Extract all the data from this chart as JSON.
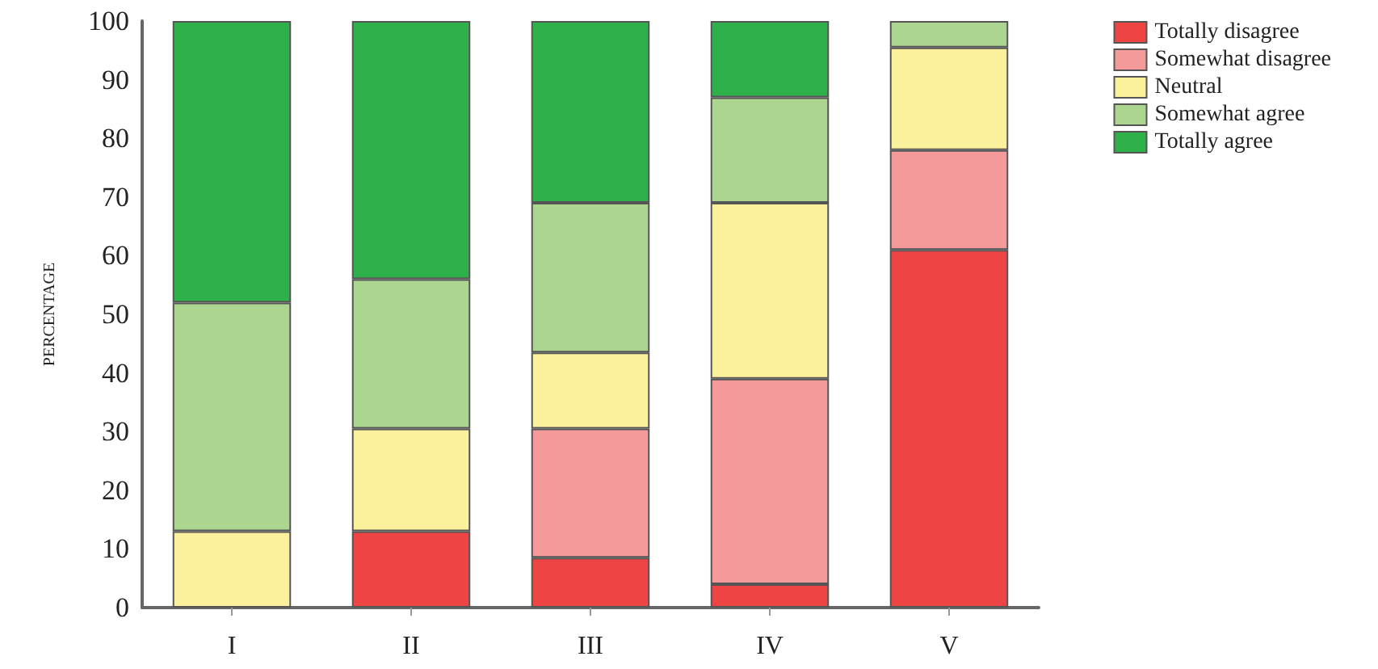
{
  "chart_data": {
    "type": "bar",
    "stacked": true,
    "ylabel": "PERCENTAGE",
    "categories": [
      "I",
      "II",
      "III",
      "IV",
      "V"
    ],
    "series": [
      {
        "name": "Totally disagree",
        "color": "#ef4444",
        "values": [
          null,
          13,
          8.5,
          4,
          61
        ]
      },
      {
        "name": "Somewhat disagree",
        "color": "#f49a9a",
        "values": [
          null,
          null,
          22,
          35,
          17
        ]
      },
      {
        "name": "Neutral",
        "color": "#fbf09c",
        "values": [
          13,
          17.5,
          13,
          30,
          17.5
        ]
      },
      {
        "name": "Somewhat agree",
        "color": "#acd58f",
        "values": [
          39,
          25.5,
          25.5,
          18,
          4.5
        ]
      },
      {
        "name": "Totally agree",
        "color": "#2eb14a",
        "values": [
          48,
          44,
          31,
          13,
          null
        ]
      }
    ],
    "ylim": [
      0,
      100
    ],
    "yticks": [
      0,
      10,
      20,
      30,
      40,
      50,
      60,
      70,
      80,
      90,
      100
    ],
    "grid": false,
    "legend": "top right"
  }
}
